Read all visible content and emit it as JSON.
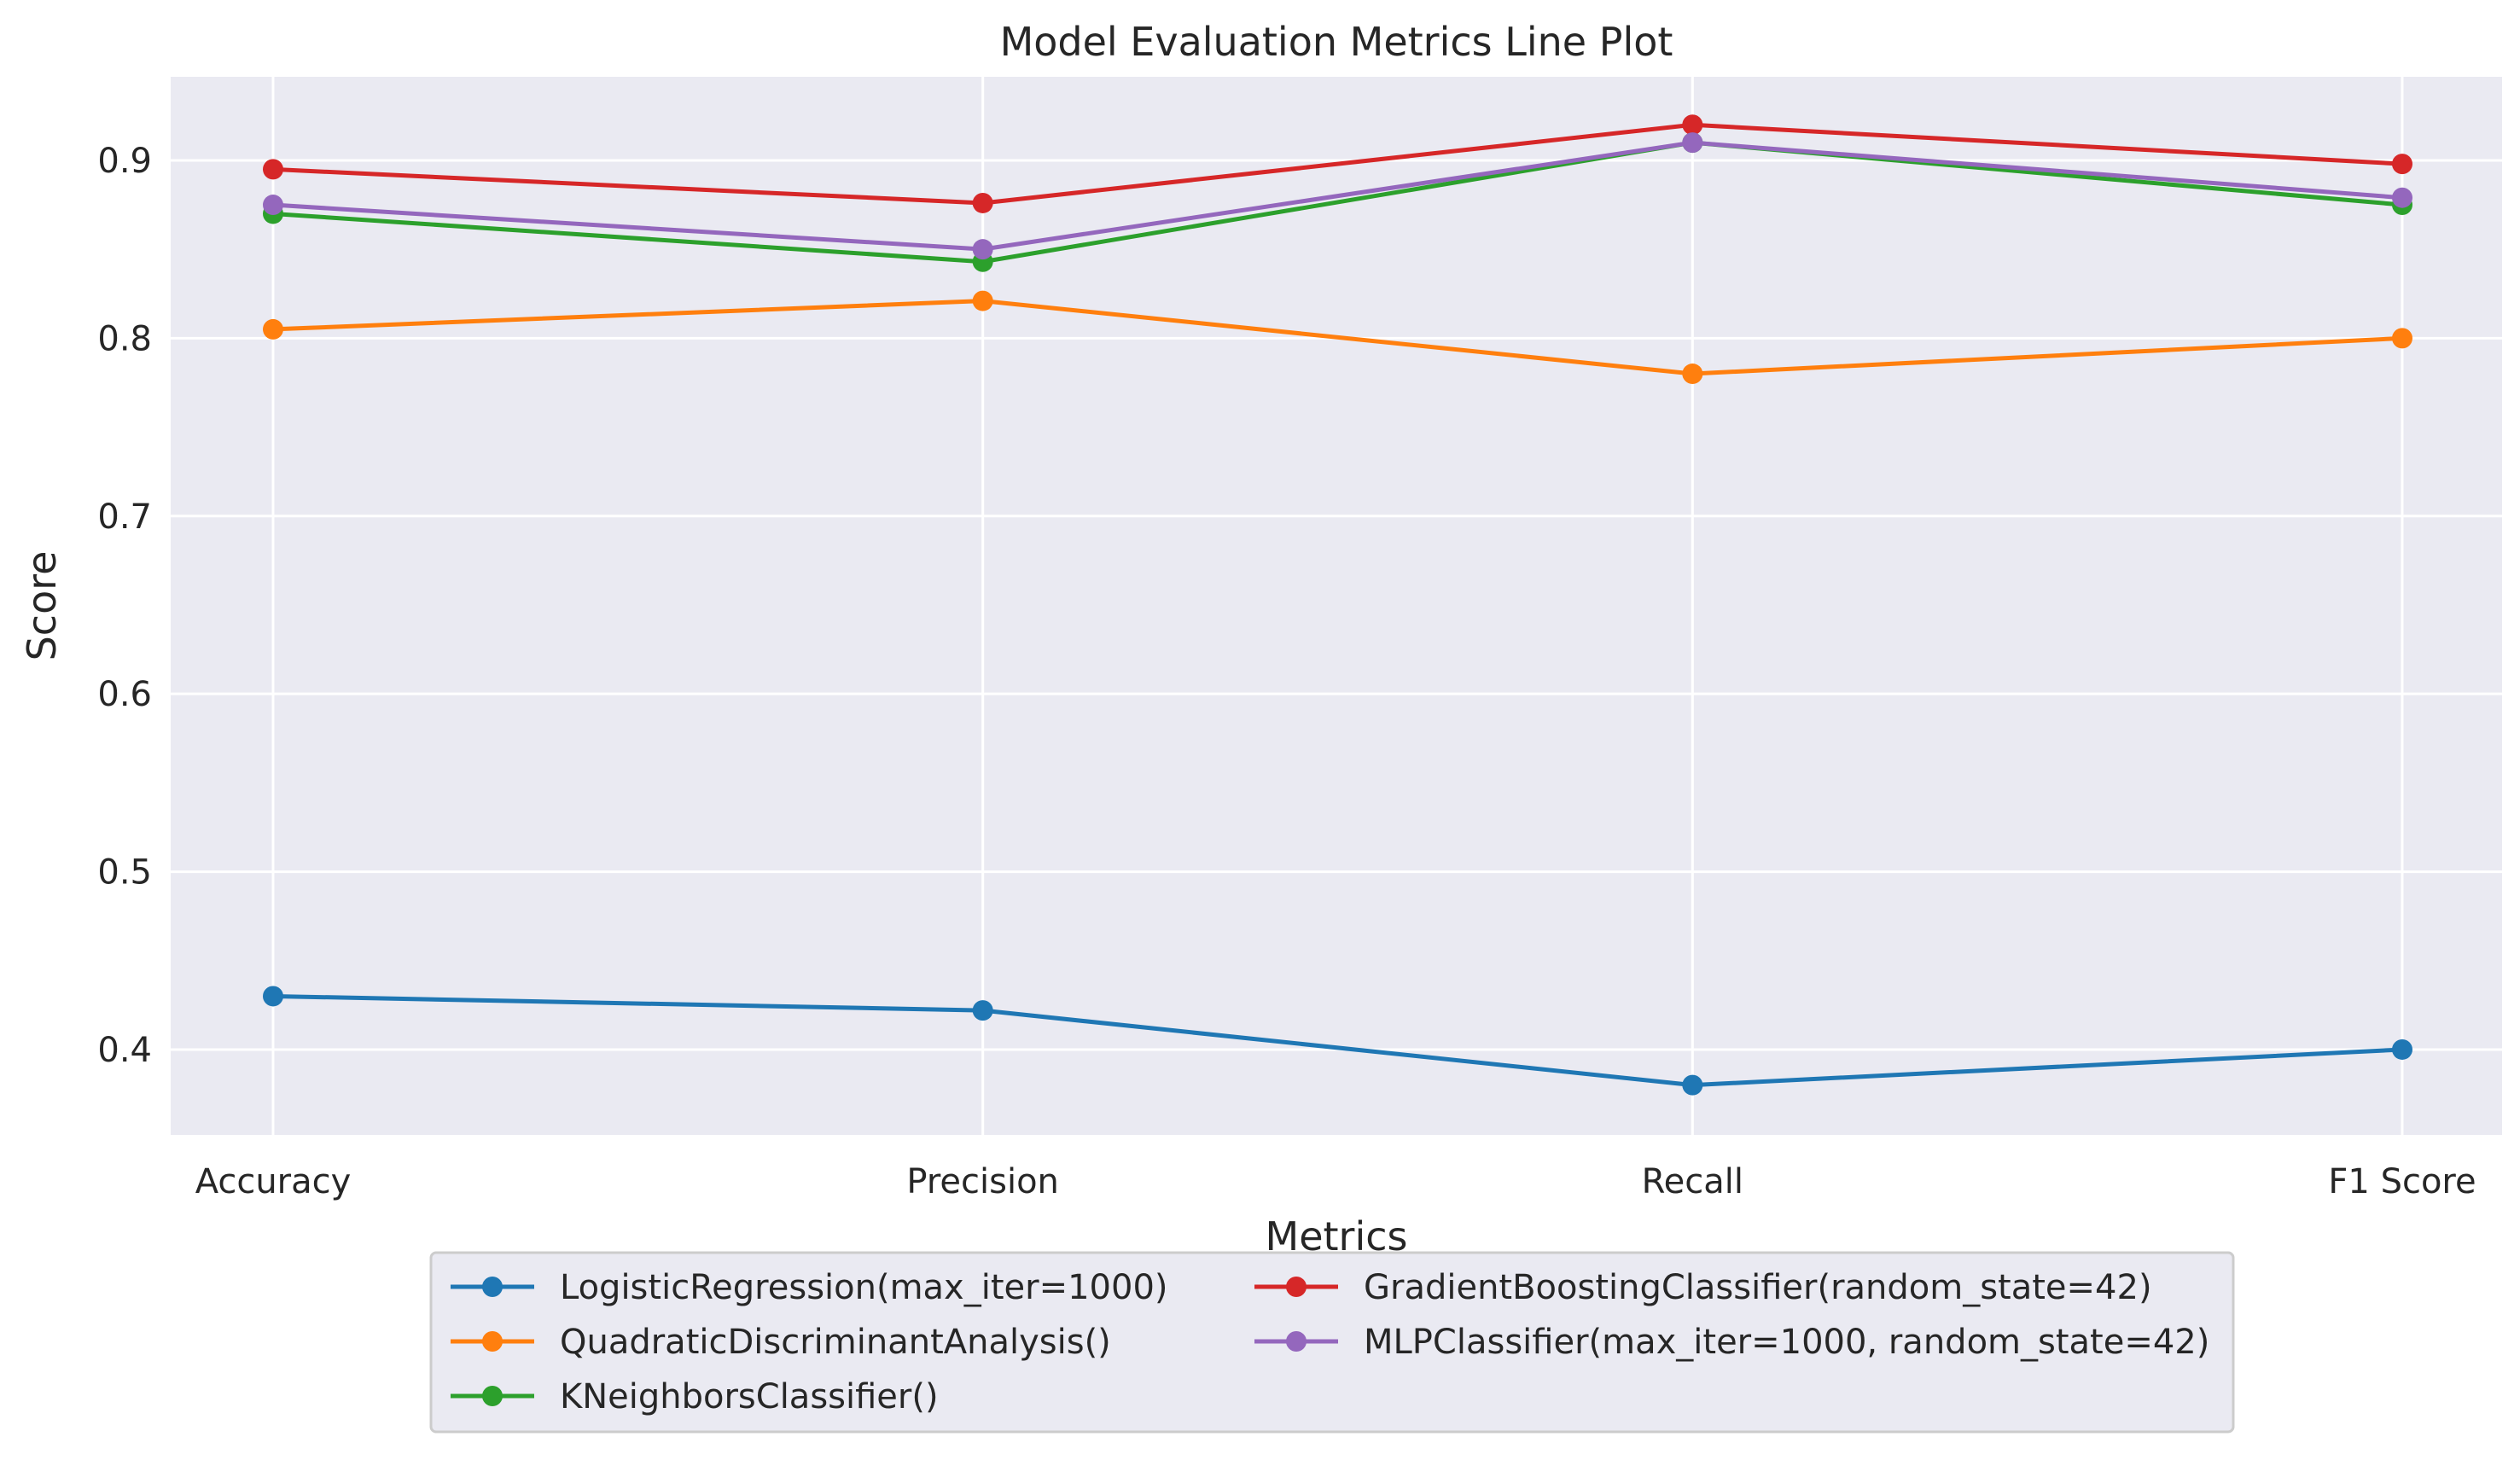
{
  "chart_data": {
    "type": "line",
    "title": "Model Evaluation Metrics Line Plot",
    "xlabel": "Metrics",
    "ylabel": "Score",
    "categories": [
      "Accuracy",
      "Precision",
      "Recall",
      "F1 Score"
    ],
    "ylim": [
      0.352,
      0.947
    ],
    "yticks": [
      0.4,
      0.5,
      0.6,
      0.7,
      0.8,
      0.9
    ],
    "grid": true,
    "legend_placement": "bottom-center",
    "background_color": "#eaeaf2",
    "series": [
      {
        "name": "LogisticRegression(max_iter=1000)",
        "color": "#1f77b4",
        "values": [
          0.43,
          0.422,
          0.38,
          0.4
        ]
      },
      {
        "name": "QuadraticDiscriminantAnalysis()",
        "color": "#ff7f0e",
        "values": [
          0.805,
          0.821,
          0.78,
          0.8
        ]
      },
      {
        "name": "KNeighborsClassifier()",
        "color": "#2ca02c",
        "values": [
          0.87,
          0.843,
          0.91,
          0.875
        ]
      },
      {
        "name": "GradientBoostingClassifier(random_state=42)",
        "color": "#d62728",
        "values": [
          0.895,
          0.876,
          0.92,
          0.898
        ]
      },
      {
        "name": "MLPClassifier(max_iter=1000, random_state=42)",
        "color": "#9467bd",
        "values": [
          0.875,
          0.85,
          0.91,
          0.879
        ]
      }
    ]
  }
}
